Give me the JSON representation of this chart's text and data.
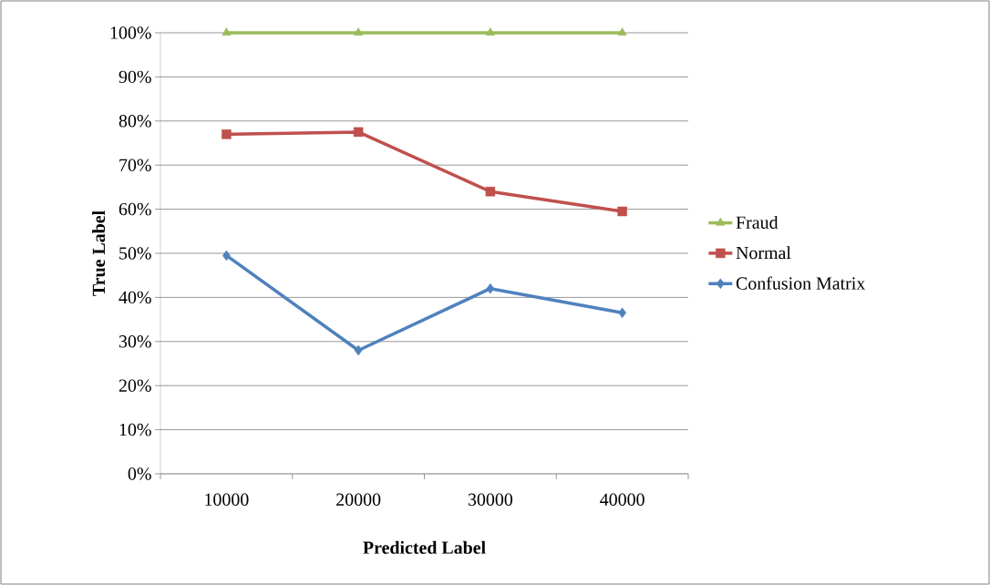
{
  "chart_data": {
    "type": "line",
    "xlabel": "Predicted Label",
    "ylabel": "True Label",
    "categories": [
      "10000",
      "20000",
      "30000",
      "40000"
    ],
    "series": [
      {
        "name": "Fraud",
        "color": "#9bbb59",
        "marker": "triangle",
        "values": [
          100,
          100,
          100,
          100
        ]
      },
      {
        "name": "Normal",
        "color": "#c0504d",
        "marker": "square",
        "values": [
          77,
          77.5,
          64,
          59.5
        ]
      },
      {
        "name": "Confusion Matrix",
        "color": "#4f81bd",
        "marker": "diamond",
        "values": [
          49.5,
          28,
          42,
          36.5
        ]
      }
    ],
    "ylim": [
      0,
      100
    ],
    "yticks": [
      {
        "value": 0,
        "label": "0%"
      },
      {
        "value": 10,
        "label": "10%"
      },
      {
        "value": 20,
        "label": "20%"
      },
      {
        "value": 30,
        "label": "30%"
      },
      {
        "value": 40,
        "label": "40%"
      },
      {
        "value": 50,
        "label": "50%"
      },
      {
        "value": 60,
        "label": "60%"
      },
      {
        "value": 70,
        "label": "70%"
      },
      {
        "value": 80,
        "label": "80%"
      },
      {
        "value": 90,
        "label": "90%"
      },
      {
        "value": 100,
        "label": "100%"
      }
    ],
    "grid": "y",
    "legend": "right",
    "line_style": "solid"
  }
}
